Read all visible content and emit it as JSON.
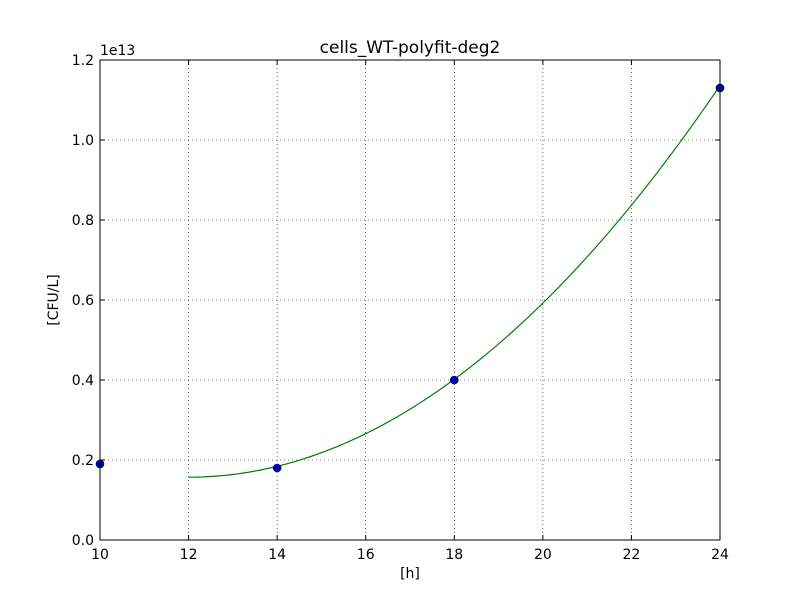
{
  "chart_data": {
    "type": "scatter",
    "title": "cells_WT-polyfit-deg2",
    "xlabel": "[h]",
    "ylabel": "[CFU/L]",
    "y_offset_label": "1e13",
    "y_scale_factor": 10000000000000.0,
    "xlim": [
      10,
      24
    ],
    "ylim": [
      0.0,
      1.2
    ],
    "grid": true,
    "x_ticks": [
      10,
      12,
      14,
      16,
      18,
      20,
      22,
      24
    ],
    "x_tick_labels": [
      "10",
      "12",
      "14",
      "16",
      "18",
      "20",
      "22",
      "24"
    ],
    "y_ticks": [
      0.0,
      0.2,
      0.4,
      0.6,
      0.8,
      1.0,
      1.2
    ],
    "y_tick_labels": [
      "0.0",
      "0.2",
      "0.4",
      "0.6",
      "0.8",
      "1.0",
      "1.2"
    ],
    "series": [
      {
        "kind": "points",
        "color": "#0000bf",
        "x": [
          10,
          14,
          18,
          24
        ],
        "y": [
          0.19,
          0.18,
          0.4,
          1.13
        ]
      },
      {
        "kind": "fit-line",
        "color": "#008000",
        "x_range": [
          12,
          24
        ],
        "polyfit_degree": 2,
        "x_vertex": 12.0,
        "y_at_vertex": 0.157,
        "curvature": 0.0068
      }
    ]
  }
}
